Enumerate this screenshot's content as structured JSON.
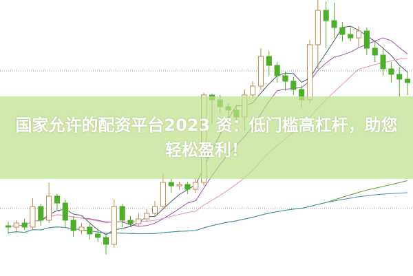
{
  "article": {
    "title": "国家允许的配资平台2023 资：低门槛高杠杆，助您轻松盈利！"
  },
  "chart_data": {
    "type": "candlestick",
    "grid": "horizontal dotted",
    "colors": {
      "up": "#c0884a",
      "down": "#4caf28",
      "ma5": "#4a5a6a",
      "ma10": "#a050b0",
      "ma20": "#e890c0",
      "ma60": "#5aa030",
      "ma120": "#3f8fa8"
    },
    "candles": [
      [
        72,
        78,
        60,
        70
      ],
      [
        70,
        80,
        62,
        76
      ],
      [
        76,
        82,
        66,
        70
      ],
      [
        70,
        112,
        66,
        100
      ],
      [
        100,
        104,
        72,
        80
      ],
      [
        80,
        135,
        76,
        115
      ],
      [
        115,
        118,
        95,
        105
      ],
      [
        105,
        110,
        70,
        80
      ],
      [
        80,
        86,
        56,
        65
      ],
      [
        65,
        76,
        60,
        70
      ],
      [
        70,
        74,
        52,
        60
      ],
      [
        60,
        66,
        48,
        55
      ],
      [
        55,
        58,
        30,
        45
      ],
      [
        45,
        110,
        40,
        100
      ],
      [
        100,
        104,
        70,
        80
      ],
      [
        80,
        86,
        70,
        75
      ],
      [
        75,
        90,
        70,
        82
      ],
      [
        82,
        96,
        78,
        90
      ],
      [
        90,
        108,
        86,
        100
      ],
      [
        100,
        148,
        96,
        135
      ],
      [
        135,
        140,
        120,
        130
      ],
      [
        130,
        136,
        124,
        132
      ],
      [
        132,
        136,
        118,
        125
      ],
      [
        125,
        142,
        120,
        135
      ],
      [
        135,
        265,
        130,
        262
      ],
      [
        262,
        264,
        220,
        255
      ],
      [
        255,
        262,
        235,
        245
      ],
      [
        245,
        250,
        228,
        240
      ],
      [
        240,
        248,
        222,
        230
      ],
      [
        230,
        270,
        210,
        262
      ],
      [
        262,
        282,
        256,
        275
      ],
      [
        275,
        330,
        270,
        318
      ],
      [
        318,
        326,
        290,
        305
      ],
      [
        305,
        310,
        280,
        290
      ],
      [
        290,
        296,
        268,
        282
      ],
      [
        282,
        288,
        262,
        270
      ],
      [
        270,
        276,
        244,
        255
      ],
      [
        255,
        342,
        250,
        335
      ],
      [
        335,
        400,
        300,
        385
      ],
      [
        385,
        398,
        330,
        370
      ],
      [
        370,
        396,
        345,
        360
      ],
      [
        360,
        368,
        340,
        350
      ],
      [
        350,
        360,
        340,
        345
      ],
      [
        345,
        362,
        330,
        355
      ],
      [
        355,
        360,
        320,
        330
      ],
      [
        330,
        340,
        310,
        320
      ],
      [
        320,
        330,
        290,
        300
      ],
      [
        300,
        310,
        280,
        292
      ],
      [
        292,
        302,
        260,
        285
      ],
      [
        285,
        296,
        262,
        280
      ]
    ]
  }
}
